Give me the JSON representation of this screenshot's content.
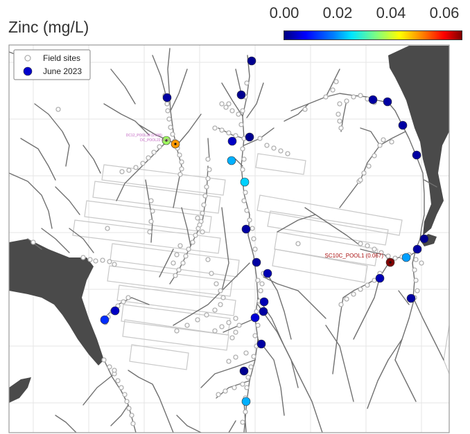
{
  "title": "Zinc (mg/L)",
  "colorbar": {
    "ticks": [
      "0.00",
      "0.02",
      "0.04",
      "0.06"
    ],
    "tick_values": [
      0.0,
      0.02,
      0.04,
      0.06
    ],
    "min": 0.0,
    "max": 0.067,
    "colormap": "jet"
  },
  "legend": {
    "items": [
      {
        "label": "Field sites",
        "marker": "hollow-circle",
        "color": "#b0b0b0"
      },
      {
        "label": "June 2023",
        "marker": "filled-circle",
        "color": "#0000cc"
      }
    ]
  },
  "labels": {
    "pool1": "SC10C_POOL1 (0.067)",
    "pool28": "DC12_POOL28 (0.036)",
    "pool22": "DC_POOL22 (0.05)"
  },
  "colors": {
    "water": "#4a4a4a",
    "stream": "#707070",
    "grid": "#e6e6e6",
    "frame": "#999999",
    "field_site": "#b0b0b0",
    "label_pink": "#c060c0",
    "label_red": "#aa1111"
  }
}
